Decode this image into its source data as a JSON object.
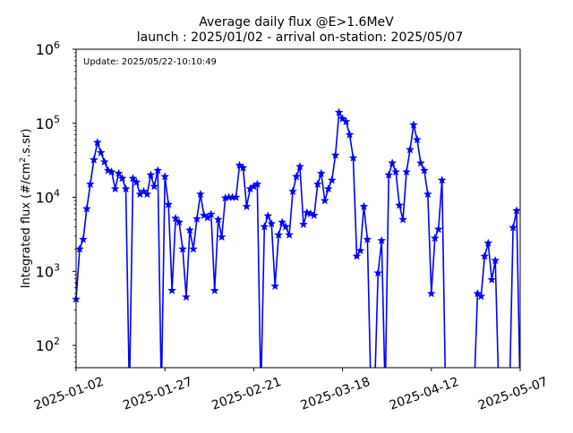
{
  "chart_data": {
    "type": "line",
    "title_line1": "Average daily flux @E>1.6MeV",
    "title_line2": "launch : 2025/01/02 - arrival on-station: 2025/05/07",
    "annotation": "Update: 2025/05/22-10:10:49",
    "ylabel_main": "Integrated flux (#/cm",
    "ylabel_sup": "2",
    "ylabel_tail": ".s.sr)",
    "xlabel": "",
    "yscale": "log",
    "xlim": [
      "2025-01-02",
      "2025-05-07"
    ],
    "ylim": [
      50,
      1000000
    ],
    "grid": false,
    "x_ticks": [
      "2025-01-02",
      "2025-01-27",
      "2025-02-21",
      "2025-03-18",
      "2025-04-12",
      "2025-05-07"
    ],
    "y_ticks": [
      {
        "value": 100,
        "base": "10",
        "exp": "2"
      },
      {
        "value": 1000,
        "base": "10",
        "exp": "3"
      },
      {
        "value": 10000,
        "base": "10",
        "exp": "4"
      },
      {
        "value": 100000,
        "base": "10",
        "exp": "5"
      },
      {
        "value": 1000000,
        "base": "10",
        "exp": "6"
      }
    ],
    "color": "#0000ff",
    "marker": "star",
    "series": [
      {
        "points": [
          [
            "2025-01-02",
            420
          ],
          [
            "2025-01-03",
            2000
          ],
          [
            "2025-01-04",
            2700
          ],
          [
            "2025-01-05",
            7000
          ],
          [
            "2025-01-06",
            15000
          ],
          [
            "2025-01-07",
            32000
          ],
          [
            "2025-01-08",
            55000
          ],
          [
            "2025-01-09",
            40000
          ],
          [
            "2025-01-10",
            30000
          ],
          [
            "2025-01-11",
            23000
          ],
          [
            "2025-01-12",
            22000
          ],
          [
            "2025-01-13",
            13000
          ],
          [
            "2025-01-14",
            21000
          ],
          [
            "2025-01-15",
            18000
          ],
          [
            "2025-01-16",
            13000
          ],
          [
            "2025-01-17",
            null
          ],
          [
            "2025-01-18",
            18000
          ],
          [
            "2025-01-19",
            16000
          ],
          [
            "2025-01-20",
            11000
          ],
          [
            "2025-01-21",
            12000
          ],
          [
            "2025-01-22",
            11000
          ],
          [
            "2025-01-23",
            20000
          ],
          [
            "2025-01-24",
            14000
          ],
          [
            "2025-01-25",
            23000
          ],
          [
            "2025-01-26",
            null
          ],
          [
            "2025-01-27",
            19000
          ],
          [
            "2025-01-28",
            8000
          ],
          [
            "2025-01-29",
            550
          ],
          [
            "2025-01-30",
            5200
          ],
          [
            "2025-01-31",
            4600
          ],
          [
            "2025-02-01",
            2000
          ],
          [
            "2025-02-02",
            450
          ],
          [
            "2025-02-03",
            3600
          ],
          [
            "2025-02-04",
            2000
          ],
          [
            "2025-02-05",
            5100
          ],
          [
            "2025-02-06",
            11000
          ],
          [
            "2025-02-07",
            5700
          ],
          [
            "2025-02-08",
            5300
          ],
          [
            "2025-02-09",
            5900
          ],
          [
            "2025-02-10",
            550
          ],
          [
            "2025-02-11",
            5000
          ],
          [
            "2025-02-12",
            2900
          ],
          [
            "2025-02-13",
            9800
          ],
          [
            "2025-02-14",
            10000
          ],
          [
            "2025-02-15",
            10000
          ],
          [
            "2025-02-16",
            10000
          ],
          [
            "2025-02-17",
            27000
          ],
          [
            "2025-02-18",
            25000
          ],
          [
            "2025-02-19",
            7500
          ],
          [
            "2025-02-20",
            13000
          ],
          [
            "2025-02-21",
            14000
          ],
          [
            "2025-02-22",
            15000
          ],
          [
            "2025-02-23",
            null
          ],
          [
            "2025-02-24",
            4000
          ],
          [
            "2025-02-25",
            5600
          ],
          [
            "2025-02-26",
            4400
          ],
          [
            "2025-02-27",
            630
          ],
          [
            "2025-02-28",
            3100
          ],
          [
            "2025-03-01",
            4600
          ],
          [
            "2025-03-02",
            4000
          ],
          [
            "2025-03-03",
            3100
          ],
          [
            "2025-03-04",
            12000
          ],
          [
            "2025-03-05",
            19000
          ],
          [
            "2025-03-06",
            26000
          ],
          [
            "2025-03-07",
            4300
          ],
          [
            "2025-03-08",
            6200
          ],
          [
            "2025-03-09",
            6000
          ],
          [
            "2025-03-10",
            5700
          ],
          [
            "2025-03-11",
            15000
          ],
          [
            "2025-03-12",
            21000
          ],
          [
            "2025-03-13",
            9000
          ],
          [
            "2025-03-14",
            13000
          ],
          [
            "2025-03-15",
            17000
          ],
          [
            "2025-03-16",
            37000
          ],
          [
            "2025-03-17",
            140000
          ],
          [
            "2025-03-18",
            115000
          ],
          [
            "2025-03-19",
            105000
          ],
          [
            "2025-03-20",
            70000
          ],
          [
            "2025-03-21",
            34000
          ],
          [
            "2025-03-22",
            1600
          ],
          [
            "2025-03-23",
            1900
          ],
          [
            "2025-03-24",
            7500
          ],
          [
            "2025-03-25",
            2700
          ],
          [
            "2025-03-26",
            null
          ],
          [
            "2025-03-27",
            null
          ],
          [
            "2025-03-28",
            950
          ],
          [
            "2025-03-29",
            2600
          ],
          [
            "2025-03-30",
            null
          ],
          [
            "2025-03-31",
            20000
          ],
          [
            "2025-04-01",
            29000
          ],
          [
            "2025-04-02",
            22000
          ],
          [
            "2025-04-03",
            7800
          ],
          [
            "2025-04-04",
            5000
          ],
          [
            "2025-04-05",
            22000
          ],
          [
            "2025-04-06",
            44000
          ],
          [
            "2025-04-07",
            95000
          ],
          [
            "2025-04-08",
            60000
          ],
          [
            "2025-04-09",
            29000
          ],
          [
            "2025-04-10",
            23000
          ],
          [
            "2025-04-11",
            11000
          ],
          [
            "2025-04-12",
            500
          ],
          [
            "2025-04-13",
            2800
          ],
          [
            "2025-04-14",
            3700
          ],
          [
            "2025-04-15",
            17000
          ],
          [
            "2025-04-16",
            null
          ],
          [
            "2025-04-17",
            null
          ],
          [
            "2025-04-18",
            null
          ],
          [
            "2025-04-19",
            null
          ],
          [
            "2025-04-20",
            null
          ],
          [
            "2025-04-21",
            null
          ],
          [
            "2025-04-22",
            null
          ],
          [
            "2025-04-23",
            null
          ],
          [
            "2025-04-24",
            null
          ],
          [
            "2025-04-25",
            500
          ],
          [
            "2025-04-26",
            460
          ],
          [
            "2025-04-27",
            1600
          ],
          [
            "2025-04-28",
            2400
          ],
          [
            "2025-04-29",
            770
          ],
          [
            "2025-04-30",
            1400
          ],
          [
            "2025-05-01",
            null
          ],
          [
            "2025-05-02",
            null
          ],
          [
            "2025-05-03",
            null
          ],
          [
            "2025-05-04",
            null
          ],
          [
            "2025-05-05",
            3900
          ],
          [
            "2025-05-06",
            6600
          ],
          [
            "2025-05-07",
            null
          ]
        ]
      }
    ]
  }
}
